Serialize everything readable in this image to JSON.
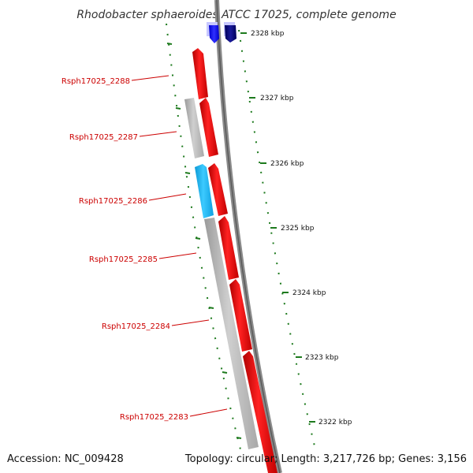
{
  "title": "Rhodobacter sphaeroides ATCC 17025, complete genome",
  "accession_text": "Accession: NC_009428",
  "summary_text": "Topology: circular; Length: 3,217,726 bp; Genes: 3,156",
  "ticks": [
    "2328 kbp",
    "2327 kbp",
    "2326 kbp",
    "2325 kbp",
    "2324 kbp",
    "2323 kbp",
    "2322 kbp"
  ],
  "gene_labels": [
    "Rsph17025_2288",
    "Rsph17025_2287",
    "Rsph17025_2286",
    "Rsph17025_2285",
    "Rsph17025_2284",
    "Rsph17025_2283"
  ],
  "colors": {
    "cds_forward": "#ff0000",
    "cds_other": "#b4b4b4",
    "rna_gene": "#19b9ff",
    "top_gene_a": "#1a1aff",
    "top_gene_b": "#00007a",
    "backbone": "#777777",
    "tick_marks": "#1d7a1d",
    "label_text": "#cc0000"
  }
}
